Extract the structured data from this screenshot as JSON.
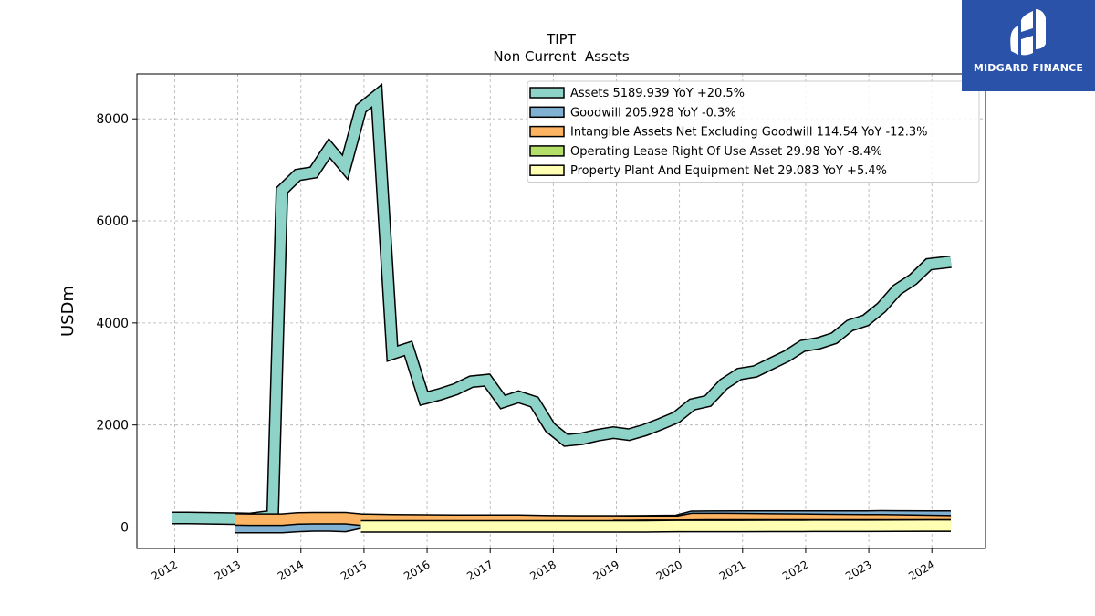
{
  "brand": {
    "name": "MIDGARD FINANCE",
    "bg_color": "#2a52a8"
  },
  "chart_data": {
    "type": "area",
    "title": "TIPT",
    "subtitle": "Non Current  Assets",
    "xlabel": "",
    "ylabel": "USDm",
    "ylim": [
      -420,
      8880
    ],
    "xlim": [
      2011.4,
      2024.85
    ],
    "yticks": [
      0,
      2000,
      4000,
      6000,
      8000
    ],
    "xticks": [
      "2012",
      "2013",
      "2014",
      "2015",
      "2016",
      "2017",
      "2018",
      "2019",
      "2020",
      "2021",
      "2022",
      "2023",
      "2024"
    ],
    "grid": true,
    "legend_position": "top-right",
    "series": [
      {
        "name": "Assets",
        "legend": "Assets  5189.939 YoY +20.5%",
        "color": "#8dd3c7",
        "x": [
          2011.95,
          2012.2,
          2012.45,
          2012.7,
          2012.95,
          2013.2,
          2013.45,
          2013.55,
          2013.7,
          2013.95,
          2014.2,
          2014.45,
          2014.7,
          2014.95,
          2015.2,
          2015.45,
          2015.7,
          2015.95,
          2016.2,
          2016.45,
          2016.7,
          2016.95,
          2017.2,
          2017.45,
          2017.7,
          2017.95,
          2018.2,
          2018.45,
          2018.7,
          2018.95,
          2019.2,
          2019.45,
          2019.7,
          2019.95,
          2020.2,
          2020.45,
          2020.7,
          2020.95,
          2021.2,
          2021.45,
          2021.7,
          2021.95,
          2022.2,
          2022.45,
          2022.7,
          2022.95,
          2023.2,
          2023.45,
          2023.7,
          2023.95,
          2024.3
        ],
        "values": [
          180,
          180,
          175,
          170,
          165,
          160,
          200,
          150,
          6600,
          6900,
          6950,
          7420,
          7050,
          8200,
          8450,
          3400,
          3500,
          2520,
          2600,
          2700,
          2850,
          2880,
          2450,
          2550,
          2450,
          1950,
          1700,
          1730,
          1800,
          1850,
          1810,
          1900,
          2020,
          2150,
          2400,
          2470,
          2800,
          3000,
          3050,
          3200,
          3350,
          3550,
          3600,
          3700,
          3950,
          4050,
          4300,
          4650,
          4850,
          5150,
          5200
        ]
      },
      {
        "name": "Goodwill",
        "legend": "Goodwill  205.928 YoY -0.3%",
        "color": "#80b1d3",
        "x": [
          2012.95,
          2013.2,
          2013.7,
          2013.95,
          2014.2,
          2014.45,
          2014.7,
          2014.95,
          2015.2,
          2015.45,
          2015.7,
          2015.95,
          2016.45,
          2016.95,
          2017.45,
          2017.95,
          2018.45,
          2018.95,
          2019.45,
          2019.95,
          2020.2,
          2020.45,
          2020.95,
          2021.45,
          2021.95,
          2022.45,
          2022.95,
          2023.2,
          2023.45,
          2023.95,
          2024.3
        ],
        "values": [
          0,
          0,
          0,
          20,
          30,
          30,
          20,
          90,
          100,
          105,
          110,
          110,
          110,
          110,
          110,
          110,
          110,
          110,
          115,
          120,
          200,
          205,
          206,
          206,
          206,
          206,
          206,
          210,
          207,
          206,
          206
        ]
      },
      {
        "name": "Intangible Assets Net Excluding Goodwill",
        "legend": "Intangible Assets Net Excluding Goodwill  114.54 YoY -12.3%",
        "color": "#fdb462",
        "x": [
          2012.95,
          2013.2,
          2013.7,
          2013.95,
          2014.2,
          2014.7,
          2014.95,
          2015.45,
          2015.95,
          2016.45,
          2016.95,
          2017.45,
          2017.95,
          2018.45,
          2018.95,
          2019.45,
          2019.95,
          2020.2,
          2020.7,
          2020.95,
          2021.45,
          2021.95,
          2022.45,
          2022.95,
          2023.2,
          2023.95,
          2024.3
        ],
        "values": [
          150,
          145,
          145,
          170,
          175,
          175,
          145,
          135,
          130,
          125,
          125,
          125,
          115,
          110,
          110,
          105,
          100,
          160,
          160,
          155,
          150,
          145,
          140,
          135,
          135,
          120,
          115
        ]
      },
      {
        "name": "Operating Lease Right Of Use Asset",
        "legend": "Operating Lease Right Of Use Asset  29.98 YoY -8.4%",
        "color": "#b3de69",
        "x": [
          2018.95,
          2019.2,
          2019.45,
          2019.95,
          2020.45,
          2020.95,
          2021.45,
          2021.95,
          2022.45,
          2022.95,
          2023.45,
          2023.95,
          2024.3
        ],
        "values": [
          20,
          20,
          25,
          25,
          30,
          30,
          30,
          30,
          30,
          30,
          32,
          32,
          30
        ]
      },
      {
        "name": "Property Plant And Equipment Net",
        "legend": "Property Plant And Equipment Net  29.083 YoY +5.4%",
        "color": "#ffffb3",
        "x": [
          2014.95,
          2015.45,
          2015.95,
          2016.45,
          2016.95,
          2017.45,
          2017.95,
          2018.45,
          2018.95,
          2019.45,
          2019.95,
          2020.45,
          2020.95,
          2021.45,
          2021.95,
          2022.45,
          2022.95,
          2023.45,
          2023.95,
          2024.3
        ],
        "values": [
          15,
          15,
          15,
          15,
          15,
          15,
          15,
          15,
          15,
          15,
          20,
          20,
          20,
          22,
          24,
          25,
          26,
          28,
          29,
          29
        ]
      }
    ]
  }
}
